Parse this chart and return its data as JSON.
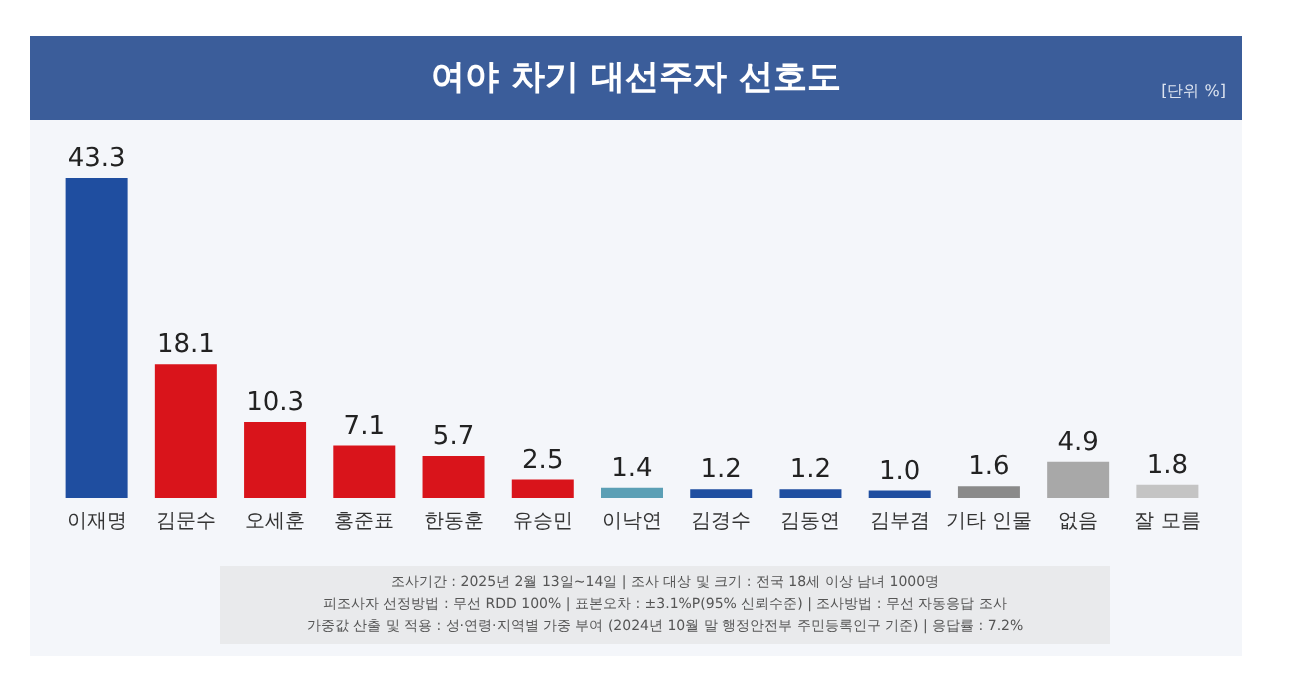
{
  "chart_data": {
    "type": "bar",
    "title": "여야 차기 대선주자 선호도",
    "subtitle": "[단위 %]",
    "categories": [
      "이재명",
      "김문수",
      "오세훈",
      "홍준표",
      "한동훈",
      "유승민",
      "이낙연",
      "김경수",
      "김동연",
      "김부겸",
      "기타 인물",
      "없음",
      "잘 모름"
    ],
    "values": [
      43.3,
      18.1,
      10.3,
      7.1,
      5.7,
      2.5,
      1.4,
      1.2,
      1.2,
      1.0,
      1.6,
      4.9,
      1.8
    ],
    "colors": [
      "#1f4ea0",
      "#d9141b",
      "#d9141b",
      "#d9141b",
      "#d9141b",
      "#d9141b",
      "#5b9fb5",
      "#1f4ea0",
      "#1f4ea0",
      "#1f4ea0",
      "#8a8a8a",
      "#a8a8a8",
      "#c4c4c4"
    ],
    "value_labels": [
      "43.3",
      "18.1",
      "10.3",
      "7.1",
      "5.7",
      "2.5",
      "1.4",
      "1.2",
      "1.2",
      "1.0",
      "1.6",
      "4.9",
      "1.8"
    ],
    "annotations": [
      "조사기간 : 2025년 2월 13일~14일 | 조사 대상 및 크기 : 전국 18세 이상 남녀 1000명",
      "피조사자 선정방법 : 무선 RDD 100% | 표본오차 : ±3.1%P(95% 신뢰수준) | 조사방법 : 무선 자동응답 조사",
      "가중값 산출 및 적용 : 성·연령·지역별 가중 부여 (2024년 10월 말 행정안전부 주민등록인구 기준) | 응답률 : 7.2%"
    ]
  }
}
